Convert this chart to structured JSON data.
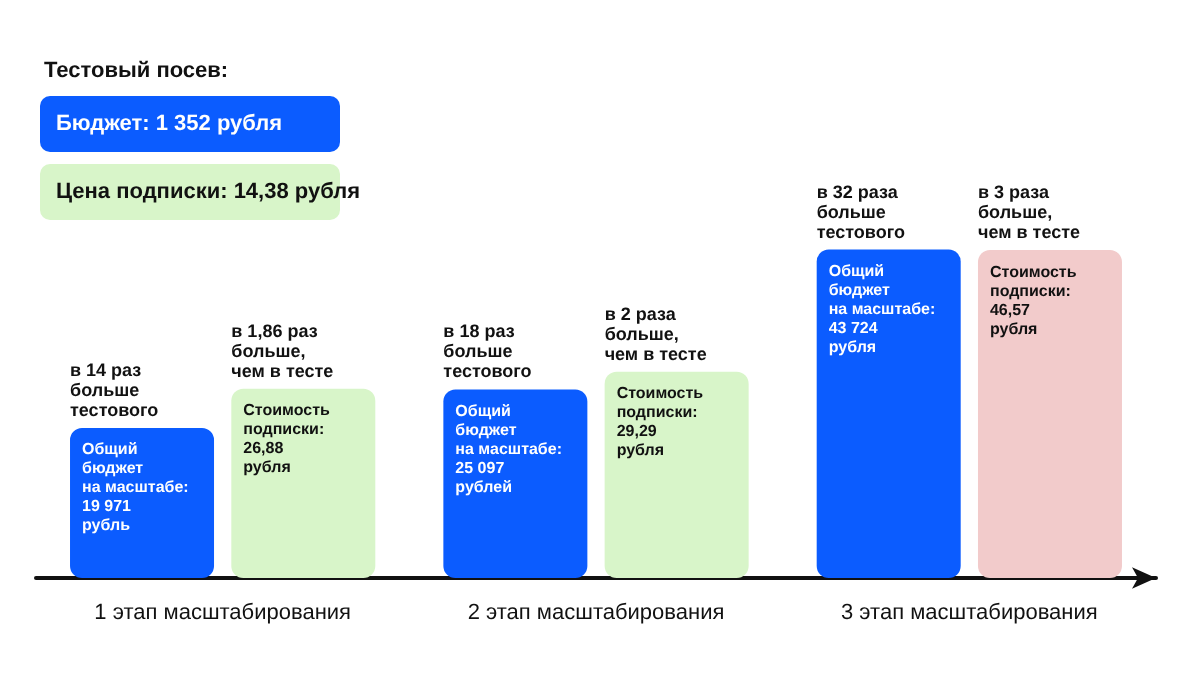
{
  "chart_data": {
    "type": "bar",
    "categories": [
      "1 этап масштабирования",
      "2 этап масштабирования",
      "3 этап масштабирования"
    ],
    "series": [
      {
        "color": "#0b5cff",
        "axis": "y",
        "values": [
          19971,
          25097,
          43724
        ],
        "value_labels": [
          "Общий\nбюджет\nна масштабе:\n19 971\nрубль",
          "Общий\nбюджет\nна масштабе:\n25 097\nрублей",
          "Общий\nбюджет\nна масштабе:\n43 724\nрубля"
        ]
      },
      {
        "colors": [
          "#d8f5c9",
          "#d8f5c9",
          "#f2cbcb"
        ],
        "axis": "y2",
        "values": [
          26.88,
          29.29,
          46.57
        ],
        "value_labels": [
          "Стоимость\nподписки:\n26,88\nрубля",
          "Стоимость\nподписки:\n29,29\nрубля",
          "Стоимость\nподписки:\n46,57\nрубля"
        ]
      }
    ],
    "annotations": [
      "Тестовый посев:",
      "Бюджет: 1 352 рубля",
      "Цена подписки: 14,38 рубля",
      "в 14 раз\nбольше\nтестового",
      "в 1,86 раз\nбольше,\nчем в тесте",
      "в 18 раз\nбольше\nтестового",
      "в 2 раза\nбольше,\nчем в тесте",
      "в 32 раза\nбольше\nтестового",
      "в 3 раза\nбольше,\nчем в тесте"
    ],
    "tick_labels": "x",
    "grid": false
  }
}
